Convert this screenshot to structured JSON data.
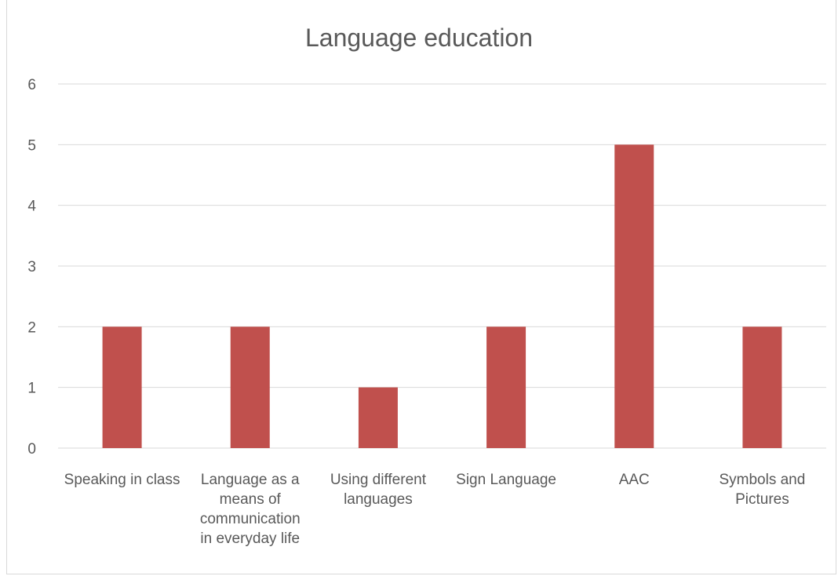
{
  "chart_data": {
    "type": "bar",
    "title": "Language education",
    "xlabel": "",
    "ylabel": "",
    "categories": [
      "Speaking in class",
      "Language as a means of communication in everyday life",
      "Using different languages",
      "Sign Language",
      "AAC",
      "Symbols and Pictures"
    ],
    "category_lines": [
      [
        "Speaking in class"
      ],
      [
        "Language as a",
        "means of",
        "communication",
        "in everyday life"
      ],
      [
        "Using different",
        "languages"
      ],
      [
        "Sign Language"
      ],
      [
        "AAC"
      ],
      [
        "Symbols and",
        "Pictures"
      ]
    ],
    "values": [
      2,
      2,
      1,
      2,
      5,
      2
    ],
    "ylim": [
      0,
      6
    ],
    "yticks": [
      0,
      1,
      2,
      3,
      4,
      5,
      6
    ],
    "grid": true,
    "legend": "none",
    "colors": {
      "bar": "#c0504d",
      "grid": "#d9d9d9",
      "text": "#595959"
    }
  }
}
